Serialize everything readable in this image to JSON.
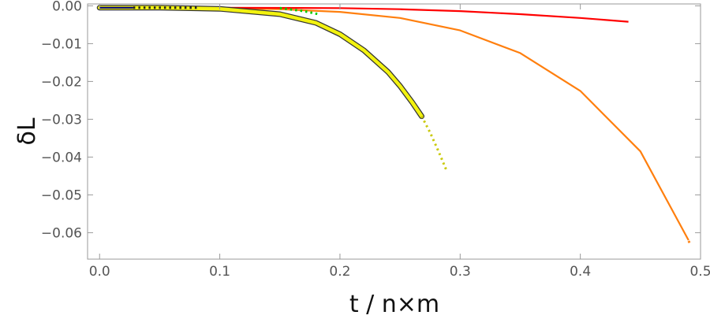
{
  "chart_data": {
    "type": "line",
    "title": "",
    "xlabel": "t / n×m",
    "ylabel": "δL",
    "xlim": [
      -0.01,
      0.5
    ],
    "ylim": [
      -0.067,
      0.0005
    ],
    "xticks": [
      0.0,
      0.1,
      0.2,
      0.3,
      0.4,
      0.5
    ],
    "xtick_labels": [
      "0.0",
      "0.1",
      "0.2",
      "0.3",
      "0.4",
      "0.5"
    ],
    "yticks": [
      0.0,
      -0.01,
      -0.02,
      -0.03,
      -0.04,
      -0.05,
      -0.06
    ],
    "ytick_labels": [
      "0.00",
      "−0.01",
      "−0.02",
      "−0.03",
      "−0.04",
      "−0.05",
      "−0.06"
    ],
    "grid": false,
    "legend": "none",
    "series": [
      {
        "color": "#ff7f0e",
        "style": "solid",
        "x": [
          0.0,
          0.05,
          0.1,
          0.15,
          0.2,
          0.25,
          0.3,
          0.35,
          0.4,
          0.45,
          0.49
        ],
        "y": [
          -0.0005,
          -0.0005,
          -0.0006,
          -0.0009,
          -0.0016,
          -0.0032,
          -0.0065,
          -0.0125,
          -0.0225,
          -0.0385,
          -0.062
        ]
      },
      {
        "color": "#ff7f0e",
        "style": "dotted",
        "x": [
          0.49,
          0.492
        ],
        "y": [
          -0.0622,
          -0.0632
        ]
      },
      {
        "color": "#ff0000",
        "style": "solid",
        "x": [
          0.0,
          0.1,
          0.2,
          0.25,
          0.3,
          0.35,
          0.4,
          0.44
        ],
        "y": [
          -0.0005,
          -0.0005,
          -0.0006,
          -0.0009,
          -0.0014,
          -0.0022,
          -0.0032,
          -0.0042
        ]
      },
      {
        "color": "#f2f20f",
        "style": "thick",
        "x": [
          0.0,
          0.05,
          0.1,
          0.15,
          0.18,
          0.2,
          0.22,
          0.24,
          0.25,
          0.26,
          0.268
        ],
        "y": [
          -0.0005,
          -0.0005,
          -0.0008,
          -0.0022,
          -0.0045,
          -0.0075,
          -0.0118,
          -0.0175,
          -0.0212,
          -0.0255,
          -0.0292
        ]
      },
      {
        "color": "#c9c90a",
        "style": "dotted",
        "x": [
          0.268,
          0.275,
          0.282,
          0.289
        ],
        "y": [
          -0.0292,
          -0.0335,
          -0.0385,
          -0.0438
        ]
      },
      {
        "color": "#00cc00",
        "style": "dotted",
        "x": [
          0.15,
          0.17,
          0.182
        ],
        "y": [
          -0.0006,
          -0.0014,
          -0.0022
        ]
      },
      {
        "color": "#000080",
        "style": "solid",
        "x": [
          0.0,
          0.028
        ],
        "y": [
          -0.0005,
          -0.0005
        ]
      },
      {
        "color": "#222222",
        "style": "dotted",
        "x": [
          0.028,
          0.082
        ],
        "y": [
          -0.0005,
          -0.0005
        ]
      }
    ]
  }
}
